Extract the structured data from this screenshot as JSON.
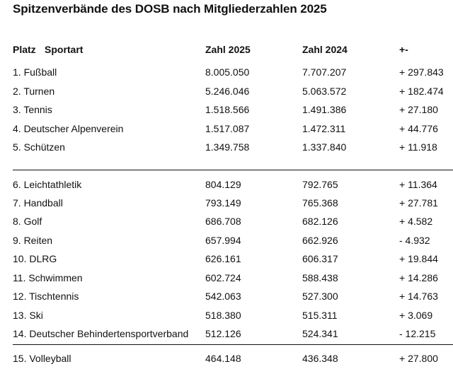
{
  "title": "Spitzenverbände des DOSB nach Mitgliederzahlen 2025",
  "headers": {
    "platz": "Platz",
    "sportart": "Sportart",
    "zahl2025": "Zahl 2025",
    "zahl2024": "Zahl 2024",
    "diff": "+-"
  },
  "rows": [
    {
      "name": "1. Fußball",
      "v2025": "8.005.050",
      "v2024": "7.707.207",
      "diff": "+ 297.843"
    },
    {
      "name": "2. Turnen",
      "v2025": "5.246.046",
      "v2024": "5.063.572",
      "diff": "+ 182.474"
    },
    {
      "name": "3. Tennis",
      "v2025": "1.518.566",
      "v2024": "1.491.386",
      "diff": "+ 27.180"
    },
    {
      "name": "4. Deutscher Alpenverein",
      "v2025": "1.517.087",
      "v2024": "1.472.311",
      "diff": "+ 44.776"
    },
    {
      "name": "5. Schützen",
      "v2025": "1.349.758",
      "v2024": "1.337.840",
      "diff": "+ 11.918"
    },
    {
      "name": "6. Leichtathletik",
      "v2025": "804.129",
      "v2024": "792.765",
      "diff": "+ 11.364"
    },
    {
      "name": "7. Handball",
      "v2025": "793.149",
      "v2024": "765.368",
      "diff": "+ 27.781"
    },
    {
      "name": "8. Golf",
      "v2025": "686.708",
      "v2024": "682.126",
      "diff": "+ 4.582"
    },
    {
      "name": "9. Reiten",
      "v2025": "657.994",
      "v2024": "662.926",
      "diff": "- 4.932"
    },
    {
      "name": "10. DLRG",
      "v2025": "626.161",
      "v2024": "606.317",
      "diff": "+ 19.844"
    },
    {
      "name": "11. Schwimmen",
      "v2025": "602.724",
      "v2024": "588.438",
      "diff": "+ 14.286"
    },
    {
      "name": "12. Tischtennis",
      "v2025": "542.063",
      "v2024": "527.300",
      "diff": "+ 14.763"
    },
    {
      "name": "13. Ski",
      "v2025": "518.380",
      "v2024": "515.311",
      "diff": "+ 3.069"
    },
    {
      "name": "14. Deutscher Behindertensportverband",
      "v2025": "512.126",
      "v2024": "524.341",
      "diff": "- 12.215"
    },
    {
      "name": "15. Volleyball",
      "v2025": "464.148",
      "v2024": "436.348",
      "diff": "+ 27.800"
    }
  ]
}
